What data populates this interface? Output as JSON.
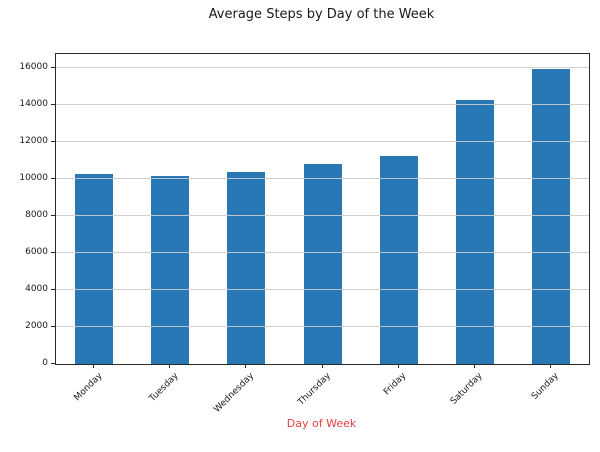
{
  "chart_data": {
    "type": "bar",
    "title": "Average Steps by Day of the Week",
    "xlabel": "Day of Week",
    "ylabel": "",
    "categories": [
      "Monday",
      "Tuesday",
      "Wednesday",
      "Thursday",
      "Friday",
      "Saturday",
      "Sunday"
    ],
    "values": [
      10250,
      10150,
      10400,
      10800,
      11250,
      14250,
      15950
    ],
    "yticks": [
      0,
      2000,
      4000,
      6000,
      8000,
      10000,
      12000,
      14000,
      16000
    ],
    "ylim": [
      0,
      16750
    ],
    "grid": "horizontal-above-bars",
    "legend": "none",
    "bar_color": "#2878b5",
    "xlabel_color": "#e53e3e",
    "gridline_color": "#cccccc"
  }
}
